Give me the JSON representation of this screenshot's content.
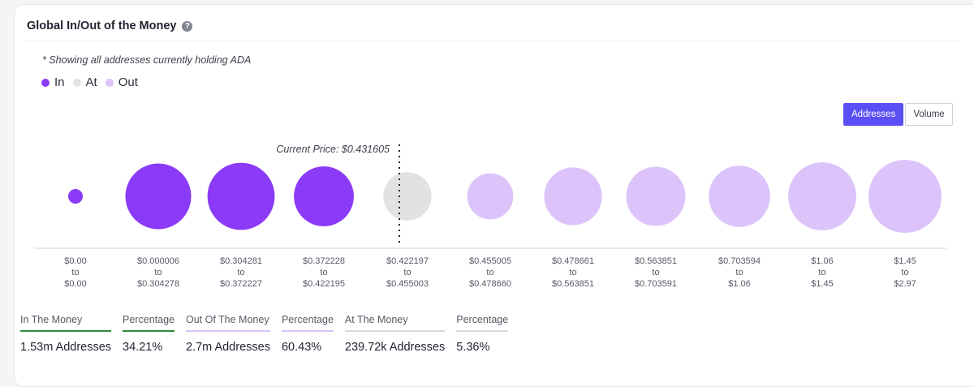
{
  "card": {
    "title": "Global In/Out of the Money",
    "help_icon": "question-circle-icon",
    "note": "* Showing all addresses currently holding ADA"
  },
  "legend": [
    {
      "label": "In",
      "color": "#8b3bf7"
    },
    {
      "label": "At",
      "color": "#e2e2e2"
    },
    {
      "label": "Out",
      "color": "#dcc4fb"
    }
  ],
  "toggle": {
    "addresses": "Addresses",
    "volume": "Volume",
    "active": "Addresses"
  },
  "chart_data": {
    "type": "bubble",
    "current_price_label": "Current Price: $0.431605",
    "current_price_bucket_index": 4,
    "buckets": [
      {
        "from": "$0.00",
        "to": "$0.00",
        "status": "In",
        "relative_size": 0.2
      },
      {
        "from": "$0.000006",
        "to": "$0.304278",
        "status": "In",
        "relative_size": 0.9
      },
      {
        "from": "$0.304281",
        "to": "$0.372227",
        "status": "In",
        "relative_size": 0.92
      },
      {
        "from": "$0.372228",
        "to": "$0.422195",
        "status": "In",
        "relative_size": 0.82
      },
      {
        "from": "$0.422197",
        "to": "$0.455003",
        "status": "At",
        "relative_size": 0.66
      },
      {
        "from": "$0.455005",
        "to": "$0.478660",
        "status": "Out",
        "relative_size": 0.63
      },
      {
        "from": "$0.478661",
        "to": "$0.563851",
        "status": "Out",
        "relative_size": 0.79
      },
      {
        "from": "$0.563851",
        "to": "$0.703591",
        "status": "Out",
        "relative_size": 0.81
      },
      {
        "from": "$0.703594",
        "to": "$1.06",
        "status": "Out",
        "relative_size": 0.84
      },
      {
        "from": "$1.06",
        "to": "$1.45",
        "status": "Out",
        "relative_size": 0.93
      },
      {
        "from": "$1.45",
        "to": "$2.97",
        "status": "Out",
        "relative_size": 1.0
      }
    ],
    "range_separator": "to"
  },
  "stats": [
    {
      "label": "In The Money",
      "value": "1.53m Addresses",
      "color": "#2e8b3a"
    },
    {
      "label": "Percentage",
      "value": "34.21%",
      "color": "#2e8b3a"
    },
    {
      "label": "Out Of The Money",
      "value": "2.7m Addresses",
      "color": "#d9c5f8"
    },
    {
      "label": "Percentage",
      "value": "60.43%",
      "color": "#d9c5f8"
    },
    {
      "label": "At The Money",
      "value": "239.72k Addresses",
      "color": "#d9d9d9"
    },
    {
      "label": "Percentage",
      "value": "5.36%",
      "color": "#d9d9d9"
    }
  ]
}
